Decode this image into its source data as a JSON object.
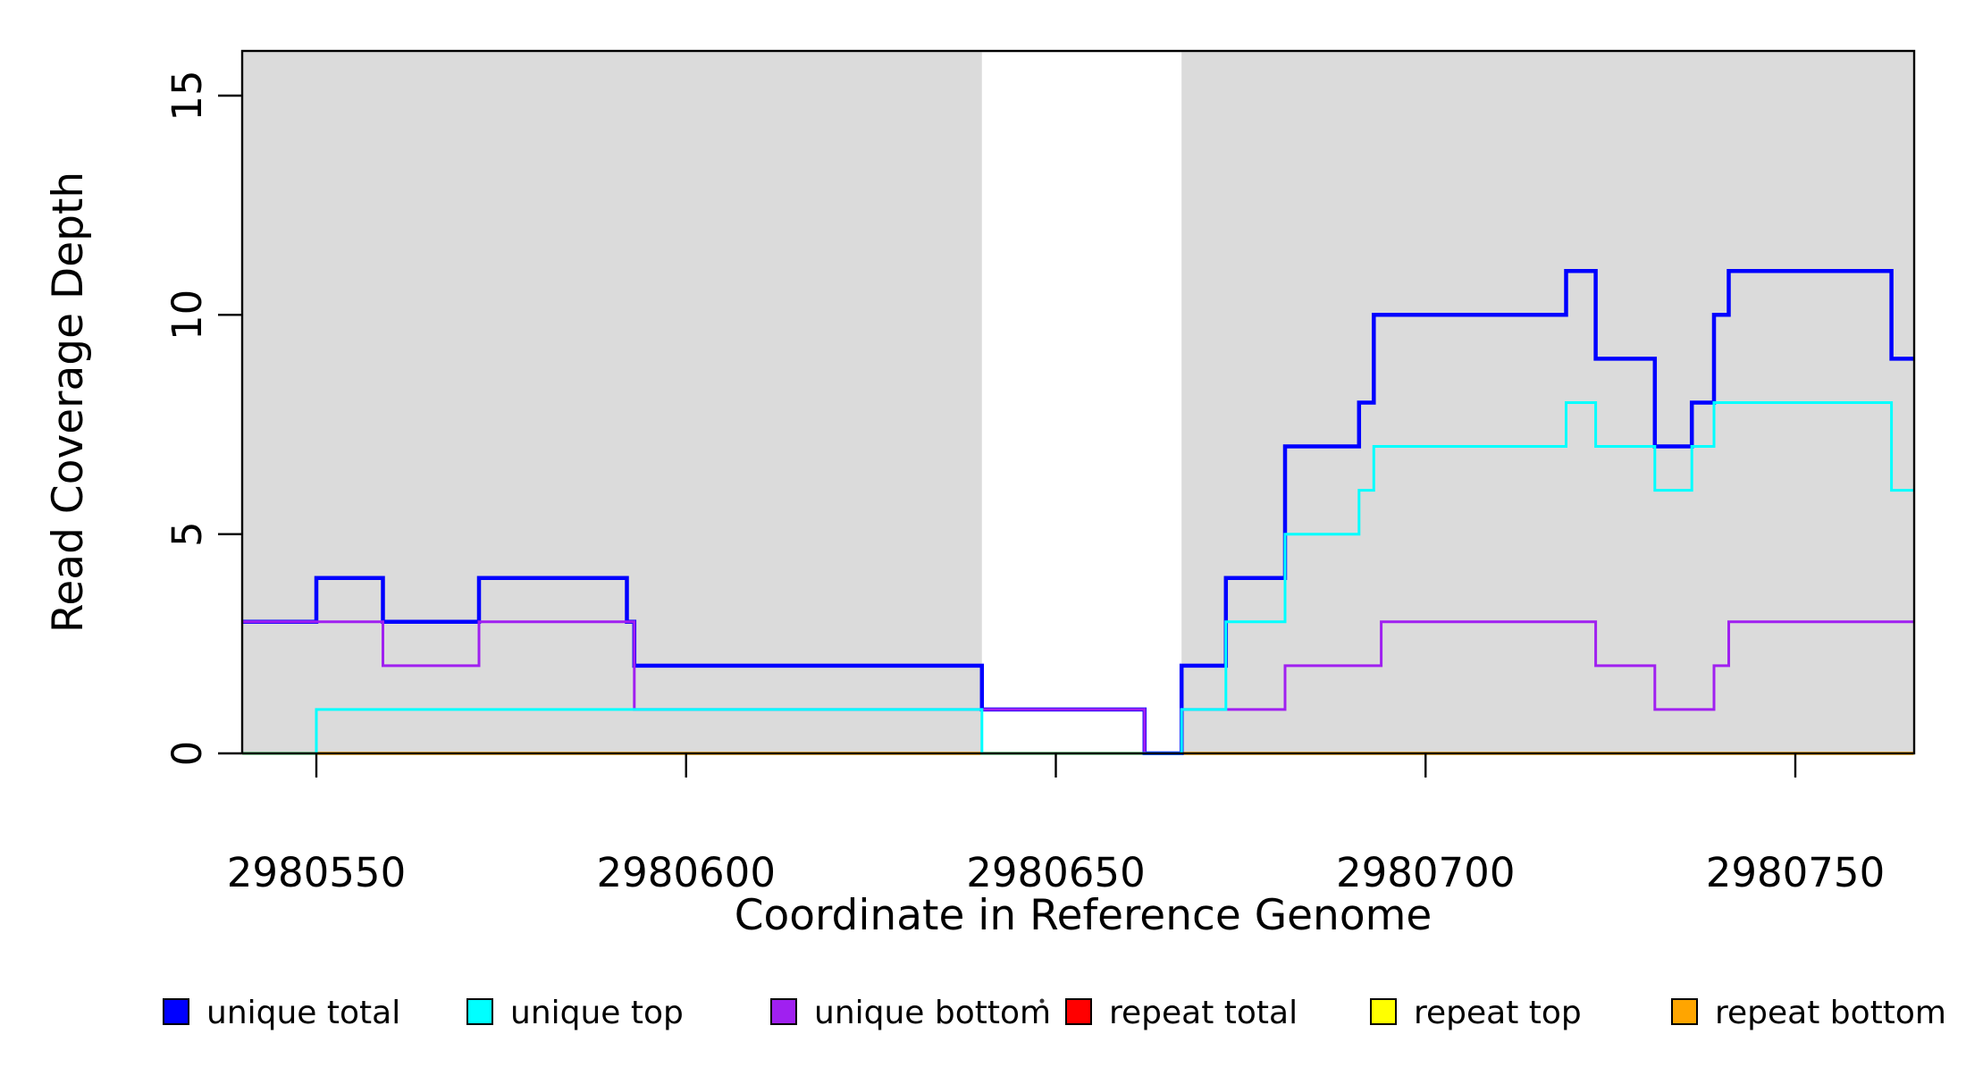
{
  "figure": {
    "type_note": "R-style read coverage step plot",
    "xlabel": "Coordinate in Reference Genome",
    "ylabel": "Read Coverage Depth"
  },
  "chart_data": {
    "type": "line",
    "subtype": "step-after",
    "title": "",
    "xlabel": "Coordinate in Reference Genome",
    "ylabel": "Read Coverage Depth",
    "xlim": [
      2980540,
      2980766
    ],
    "ylim": [
      0,
      16
    ],
    "grid": false,
    "x_ticks": [
      2980550,
      2980600,
      2980650,
      2980700,
      2980750
    ],
    "y_ticks": [
      0,
      5,
      10,
      15
    ],
    "plot_bg_color": "#DBDBDB",
    "gray_regions": [
      [
        2980540,
        2980640
      ],
      [
        2980667,
        2980766
      ]
    ],
    "white_gap_region": {
      "from": 2980640,
      "to": 2980667,
      "color": "#FFFFFF"
    },
    "series": [
      {
        "name": "repeat total",
        "color": "#FF0000",
        "width": 3,
        "points": [
          [
            2980540,
            0
          ],
          [
            2980766,
            0
          ]
        ]
      },
      {
        "name": "repeat top",
        "color": "#FFFF00",
        "width": 3,
        "points": [
          [
            2980540,
            0
          ],
          [
            2980766,
            0
          ]
        ]
      },
      {
        "name": "repeat bottom",
        "color": "#FFA500",
        "width": 3.5,
        "points": [
          [
            2980540,
            0
          ],
          [
            2980766,
            0
          ]
        ]
      },
      {
        "name": "unique total",
        "color": "#0000FF",
        "width": 4.5,
        "points": [
          [
            2980540,
            3
          ],
          [
            2980550,
            4
          ],
          [
            2980559,
            3
          ],
          [
            2980572,
            4
          ],
          [
            2980592,
            3
          ],
          [
            2980593,
            2
          ],
          [
            2980640,
            1
          ],
          [
            2980662,
            0
          ],
          [
            2980667,
            2
          ],
          [
            2980673,
            4
          ],
          [
            2980681,
            7
          ],
          [
            2980691,
            8
          ],
          [
            2980693,
            10
          ],
          [
            2980719,
            11
          ],
          [
            2980723,
            9
          ],
          [
            2980731,
            7
          ],
          [
            2980736,
            8
          ],
          [
            2980739,
            10
          ],
          [
            2980741,
            11
          ],
          [
            2980763,
            9
          ],
          [
            2980766,
            9
          ]
        ]
      },
      {
        "name": "unique bottom",
        "color": "#A020F0",
        "width": 3,
        "points": [
          [
            2980540,
            3
          ],
          [
            2980559,
            2
          ],
          [
            2980572,
            3
          ],
          [
            2980593,
            1
          ],
          [
            2980662,
            0
          ],
          [
            2980667,
            1
          ],
          [
            2980681,
            2
          ],
          [
            2980694,
            3
          ],
          [
            2980723,
            2
          ],
          [
            2980731,
            1
          ],
          [
            2980739,
            2
          ],
          [
            2980741,
            3
          ],
          [
            2980766,
            3
          ]
        ]
      },
      {
        "name": "unique top",
        "color": "#00FFFF",
        "width": 3,
        "points": [
          [
            2980540,
            0
          ],
          [
            2980550,
            1
          ],
          [
            2980640,
            0
          ],
          [
            2980667,
            1
          ],
          [
            2980673,
            3
          ],
          [
            2980681,
            5
          ],
          [
            2980691,
            6
          ],
          [
            2980693,
            7
          ],
          [
            2980719,
            8
          ],
          [
            2980723,
            7
          ],
          [
            2980731,
            6
          ],
          [
            2980736,
            7
          ],
          [
            2980739,
            8
          ],
          [
            2980763,
            6
          ],
          [
            2980766,
            6
          ]
        ]
      }
    ]
  },
  "legend": {
    "items": [
      {
        "label": "unique total",
        "color": "#0000FF"
      },
      {
        "label": "unique top",
        "color": "#00FFFF"
      },
      {
        "label": "unique bottom",
        "color": "#A020F0"
      },
      {
        "label": "repeat total",
        "color": "#FF0000"
      },
      {
        "label": "repeat top",
        "color": "#FFFF00"
      },
      {
        "label": "repeat bottom",
        "color": "#FFA500"
      }
    ],
    "stray_dot_present": true
  }
}
